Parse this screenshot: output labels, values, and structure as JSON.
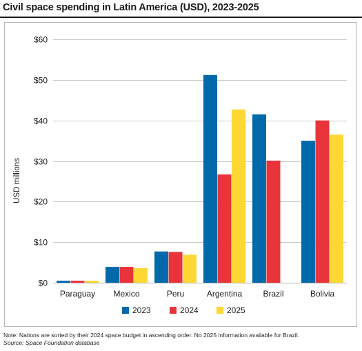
{
  "title": "Civil space spending in Latin America (USD), 2023-2025",
  "note": "Note: Nations are sorted by their 2024 space budget in ascending order. No 2025 information available for Brazil.",
  "source": "Source: Space Foundation database",
  "chart_data": {
    "type": "bar",
    "title": "Civil space spending in Latin America (USD), 2023-2025",
    "xlabel": "",
    "ylabel": "USD millions",
    "ylim": [
      0,
      60
    ],
    "yticks": [
      0,
      10,
      20,
      30,
      40,
      50,
      60
    ],
    "ytick_labels": [
      "$0",
      "$10",
      "$20",
      "$30",
      "$40",
      "$50",
      "$60"
    ],
    "grid": true,
    "legend_position": "bottom",
    "categories": [
      "Paraguay",
      "Mexico",
      "Peru",
      "Argentina",
      "Brazil",
      "Bolivia"
    ],
    "series": [
      {
        "name": "2023",
        "color": "#0069aa",
        "values": [
          0.5,
          3.9,
          7.7,
          51.2,
          41.5,
          35.0
        ]
      },
      {
        "name": "2024",
        "color": "#e8343a",
        "values": [
          0.5,
          3.9,
          7.6,
          26.7,
          30.1,
          40.0
        ]
      },
      {
        "name": "2025",
        "color": "#fdd834",
        "values": [
          0.5,
          3.6,
          6.9,
          42.7,
          null,
          36.5
        ]
      }
    ]
  }
}
